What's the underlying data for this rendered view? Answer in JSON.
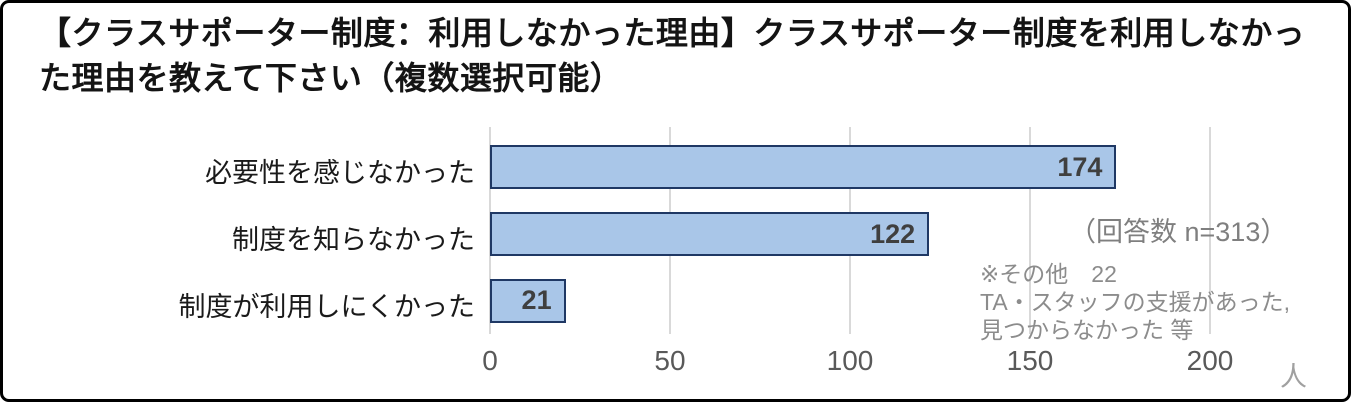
{
  "title": "【クラスサポーター制度：利用しなかった理由】クラスサポーター制度を利用しなかった理由を教えて下さい（複数選択可能）",
  "chart_data": {
    "type": "bar",
    "orientation": "horizontal",
    "categories": [
      "必要性を感じなかった",
      "制度を知らなかった",
      "制度が利用しにくかった"
    ],
    "values": [
      174,
      122,
      21
    ],
    "xlim": [
      0,
      200
    ],
    "xticks": [
      0,
      50,
      100,
      150,
      200
    ],
    "x_unit": "人",
    "grid": true,
    "legend": "none",
    "colors": {
      "bar_fill": "#a9c6e8",
      "bar_border": "#1f3864",
      "value_label": "#3f3f3f",
      "gridline": "#d9d9d9",
      "tick_label": "#595959"
    }
  },
  "annotations": {
    "response_count": "（回答数 n=313）",
    "note_lines": [
      "※その他　22",
      "TA・スタッフの支援があった,",
      "見つからなかった 等"
    ]
  }
}
